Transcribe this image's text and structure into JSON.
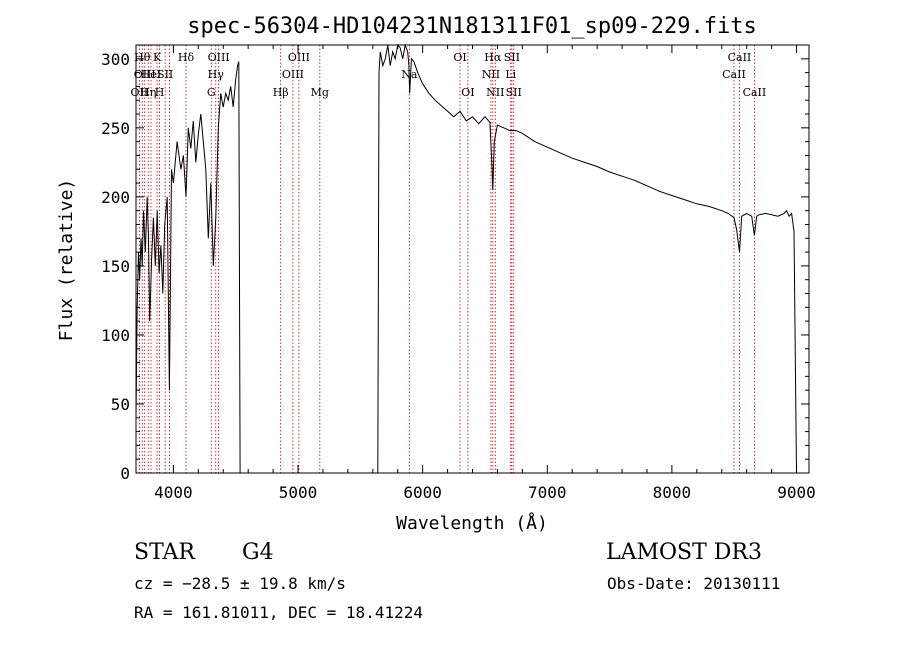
{
  "chart_data": {
    "type": "line",
    "title": "spec-56304-HD104231N181311F01_sp09-229.fits",
    "xlabel": "Wavelength (Å)",
    "ylabel": "Flux (relative)",
    "xlim": [
      3700,
      9100
    ],
    "ylim": [
      0,
      310
    ],
    "xticks": [
      4000,
      5000,
      6000,
      7000,
      8000,
      9000
    ],
    "yticks": [
      0,
      50,
      100,
      150,
      200,
      250,
      300
    ],
    "grid": false,
    "series": [
      {
        "name": "flux",
        "segments": [
          {
            "x": [
              3700,
              3710,
              3720,
              3730,
              3740,
              3750,
              3760,
              3775,
              3790,
              3800,
              3810,
              3825,
              3840,
              3855,
              3870,
              3885,
              3900,
              3915,
              3930,
              3950,
              3968,
              3985,
              4000,
              4030,
              4060,
              4080,
              4101,
              4120,
              4140,
              4160,
              4180,
              4200,
              4220,
              4240,
              4260,
              4280,
              4300,
              4320,
              4340,
              4360,
              4380,
              4400,
              4420,
              4440,
              4460,
              4480,
              4500,
              4515,
              4525,
              4535
            ],
            "y": [
              40,
              120,
              160,
              140,
              170,
              150,
              190,
              160,
              200,
              170,
              110,
              155,
              185,
              150,
              190,
              145,
              165,
              130,
              180,
              200,
              60,
              220,
              210,
              240,
              220,
              230,
              200,
              250,
              235,
              255,
              225,
              245,
              260,
              240,
              220,
              170,
              210,
              150,
              185,
              250,
              275,
              265,
              275,
              270,
              280,
              265,
              285,
              295,
              298,
              0
            ]
          },
          {
            "x": [
              5640,
              5650,
              5660,
              5680,
              5700,
              5720,
              5740,
              5760,
              5780,
              5800,
              5820,
              5840,
              5860,
              5880,
              5890,
              5896,
              5910,
              5930,
              5960,
              6000,
              6050,
              6100,
              6150,
              6200,
              6250,
              6300,
              6350,
              6400,
              6450,
              6500,
              6540,
              6555,
              6563,
              6575,
              6600,
              6650,
              6700,
              6750,
              6800,
              6900,
              7000,
              7100,
              7200,
              7300,
              7400,
              7500,
              7600,
              7700,
              7800,
              7900,
              8000,
              8100,
              8200,
              8300,
              8400,
              8450,
              8498,
              8520,
              8542,
              8560,
              8600,
              8640,
              8662,
              8680,
              8700,
              8750,
              8800,
              8850,
              8900,
              8920,
              8940,
              8960,
              8980,
              9000
            ],
            "y": [
              0,
              290,
              305,
              295,
              300,
              310,
              295,
              305,
              300,
              310,
              308,
              300,
              310,
              305,
              295,
              275,
              300,
              298,
              290,
              282,
              275,
              270,
              266,
              262,
              258,
              262,
              255,
              258,
              253,
              258,
              254,
              225,
              205,
              240,
              252,
              250,
              248,
              248,
              246,
              240,
              236,
              232,
              228,
              225,
              222,
              218,
              215,
              212,
              208,
              204,
              201,
              198,
              195,
              193,
              190,
              188,
              185,
              176,
              160,
              186,
              188,
              186,
              172,
              186,
              187,
              188,
              187,
              186,
              188,
              190,
              186,
              188,
              175,
              0
            ]
          }
        ]
      }
    ],
    "lines": [
      {
        "x": 3727,
        "labels": [
          "OII"
        ],
        "row": 2
      },
      {
        "x": 3750,
        "labels": [
          "Hθ"
        ],
        "row": 0
      },
      {
        "x": 3770,
        "labels": [
          "OIII"
        ],
        "row": 1
      },
      {
        "x": 3798,
        "labels": [
          "Hη"
        ],
        "row": 2
      },
      {
        "x": 3820,
        "labels": [
          "HeI"
        ],
        "row": 1
      },
      {
        "x": 3869,
        "labels": [
          "K"
        ],
        "row": 0
      },
      {
        "x": 3889,
        "labels": [
          "H"
        ],
        "row": 2
      },
      {
        "x": 3934,
        "labels": [
          "SII"
        ],
        "row": 1
      },
      {
        "x": 3968,
        "labels": [],
        "row": 0
      },
      {
        "x": 4101,
        "labels": [
          "Hδ"
        ],
        "row": 0
      },
      {
        "x": 4304,
        "labels": [
          "G"
        ],
        "row": 2
      },
      {
        "x": 4340,
        "labels": [
          "Hγ"
        ],
        "row": 1
      },
      {
        "x": 4363,
        "labels": [
          "OIII"
        ],
        "row": 0
      },
      {
        "x": 4861,
        "labels": [
          "Hβ"
        ],
        "row": 2
      },
      {
        "x": 4959,
        "labels": [
          "OIII"
        ],
        "row": 1
      },
      {
        "x": 5007,
        "labels": [
          "OIII"
        ],
        "row": 0
      },
      {
        "x": 5175,
        "labels": [
          "Mg"
        ],
        "row": 2
      },
      {
        "x": 5893,
        "labels": [
          "Na"
        ],
        "row": 1
      },
      {
        "x": 6300,
        "labels": [
          "OI"
        ],
        "row": 0
      },
      {
        "x": 6363,
        "labels": [
          "OI"
        ],
        "row": 2
      },
      {
        "x": 6548,
        "labels": [
          "NII"
        ],
        "row": 1
      },
      {
        "x": 6563,
        "labels": [
          "Hα"
        ],
        "row": 0
      },
      {
        "x": 6583,
        "labels": [
          "NII"
        ],
        "row": 2
      },
      {
        "x": 6707,
        "labels": [
          "Li"
        ],
        "row": 1
      },
      {
        "x": 6716,
        "labels": [
          "SII"
        ],
        "row": 0
      },
      {
        "x": 6731,
        "labels": [
          "SII"
        ],
        "row": 2
      },
      {
        "x": 8498,
        "labels": [
          "CaII"
        ],
        "row": 1
      },
      {
        "x": 8542,
        "labels": [
          "CaII"
        ],
        "row": 0
      },
      {
        "x": 8662,
        "labels": [
          "CaII"
        ],
        "row": 2
      }
    ],
    "line_color": "#c00000"
  },
  "info": {
    "object_class": "STAR",
    "subclass": "G4",
    "survey": "LAMOST DR3",
    "redshift": "cz = −28.5 ± 19.8 km/s",
    "obs_date": "Obs-Date: 20130111",
    "coords": "RA = 161.81011, DEC =  18.41224"
  }
}
